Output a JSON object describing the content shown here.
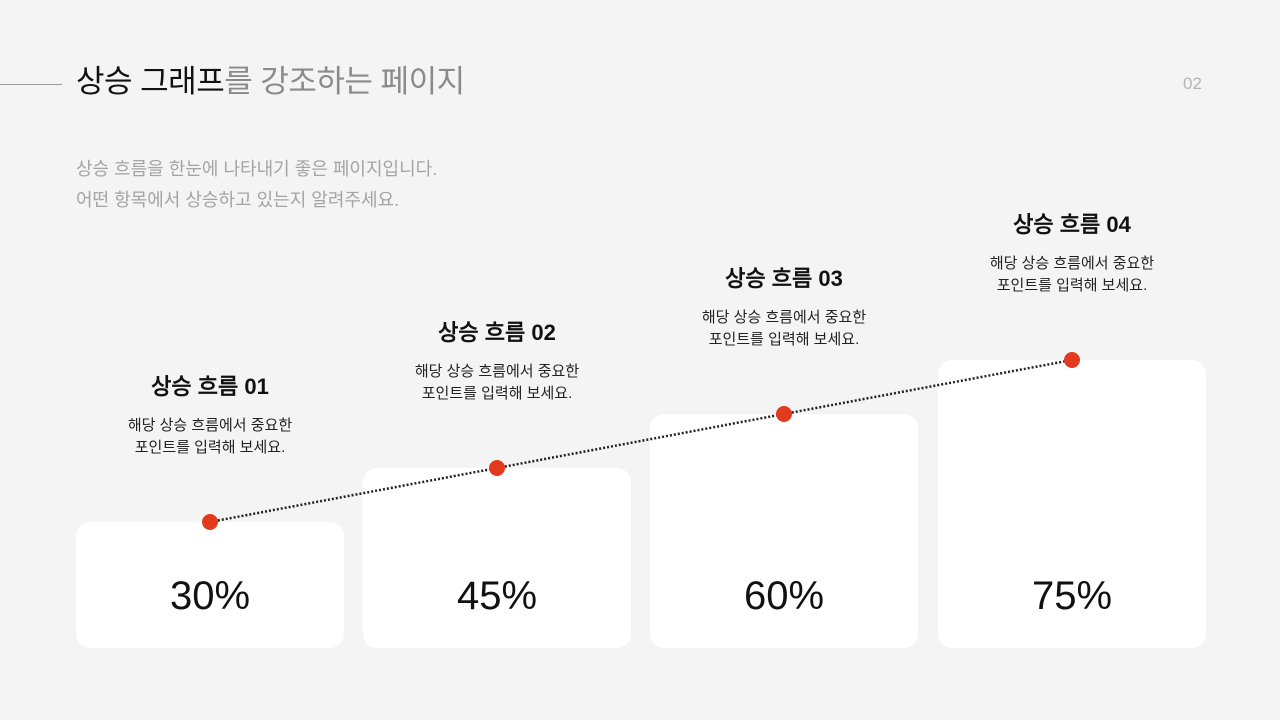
{
  "header": {
    "title_emphasis": "상승 그래프",
    "title_rest": "를 강조하는 페이지",
    "page_number": "02"
  },
  "subtitle": {
    "line1": "상승 흐름을 한눈에 나타내기 좋은 페이지입니다.",
    "line2": "어떤 항목에서 상승하고 있는지 알려주세요."
  },
  "colors": {
    "accent": "#e23a1c",
    "bar": "#ffffff",
    "background": "#f4f4f4"
  },
  "chart_data": {
    "type": "bar",
    "categories": [
      "상승 흐름 01",
      "상승 흐름 02",
      "상승 흐름 03",
      "상승 흐름 04"
    ],
    "values": [
      30,
      45,
      60,
      75
    ],
    "value_labels": [
      "30%",
      "45%",
      "60%",
      "75%"
    ],
    "descriptions": [
      [
        "해당 상승 흐름에서 중요한",
        "포인트를 입력해 보세요."
      ],
      [
        "해당 상승 흐름에서 중요한",
        "포인트를 입력해 보세요."
      ],
      [
        "해당 상승 흐름에서 중요한",
        "포인트를 입력해 보세요."
      ],
      [
        "해당 상승 흐름에서 중요한",
        "포인트를 입력해 보세요."
      ]
    ],
    "trend_line": "dotted line connecting bar tops",
    "grid": false
  }
}
